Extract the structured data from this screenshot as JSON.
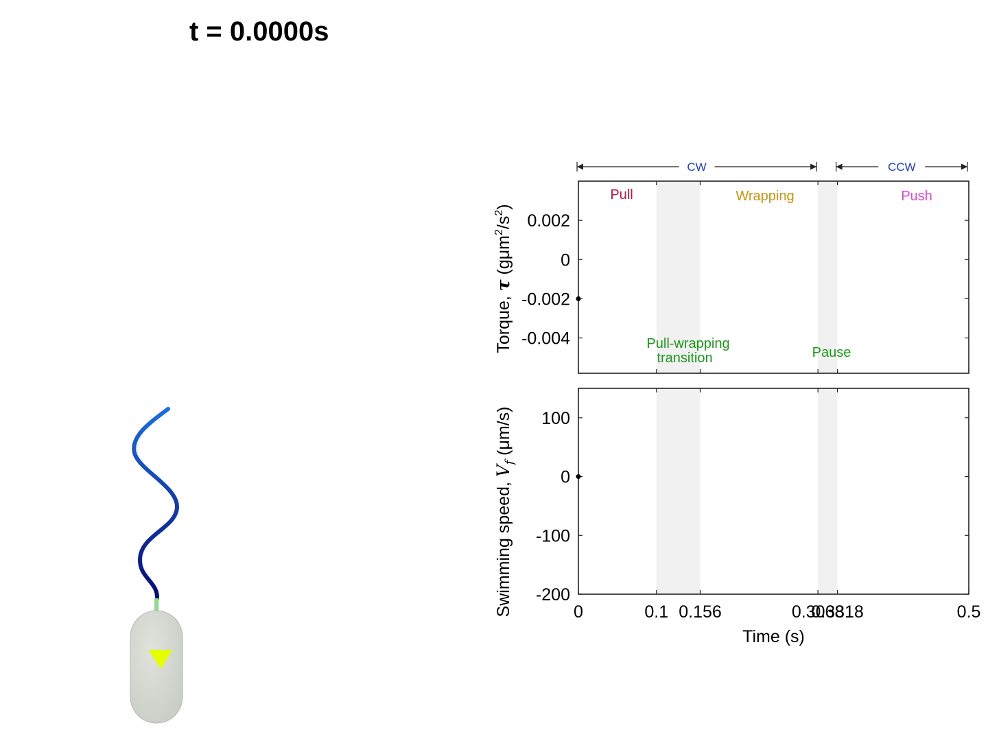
{
  "title": "t = 0.0000s",
  "colors": {
    "cw": "#1a3fe0",
    "ccw": "#1a3fe0",
    "pull": "#cc1144",
    "wrapping": "#c8960a",
    "push": "#e83ee0",
    "transition": "#1a9a1a",
    "band": "#f1f1f1",
    "flagellum_tip": "#1a6ee0",
    "flagellum_base": "#0a0a7a",
    "hook": "#8fdc8f",
    "body": "#c6cbc4",
    "arrow_marker": "#e6ff00"
  },
  "direction_labels": {
    "cw": "CW",
    "ccw": "CCW"
  },
  "phase_labels": {
    "pull": "Pull",
    "wrapping": "Wrapping",
    "push": "Push",
    "pull_wrapping_line1": "Pull-wrapping",
    "pull_wrapping_line2": "transition",
    "pause": "Pause"
  },
  "chart_data": [
    {
      "type": "line",
      "ylabel": "Torque, τ (gμm²/s²)",
      "ylabel_main": "Torque, ",
      "ylabel_symbol": "τ",
      "ylabel_unit_pre": " (gμm",
      "ylabel_sup1": "2",
      "ylabel_unit_mid": "/s",
      "ylabel_sup2": "2",
      "ylabel_unit_post": ")",
      "xlim": [
        0,
        0.5
      ],
      "ylim": [
        -0.0058,
        0.004
      ],
      "yticks": [
        0.002,
        0,
        -0.002,
        -0.004
      ],
      "ytick_labels": [
        "0.002",
        "0",
        "-0.002",
        "-0.004"
      ],
      "shaded_bands": [
        [
          0.1,
          0.156
        ],
        [
          0.3068,
          0.3318
        ]
      ],
      "x": [
        0
      ],
      "values": [
        -0.002
      ]
    },
    {
      "type": "line",
      "ylabel": "Swimming speed, Vf (μm/s)",
      "ylabel_main": "Swimming speed, ",
      "ylabel_symbol": "V",
      "ylabel_sub": "f",
      "ylabel_unit_post": " (μm/s)",
      "xlabel": "Time (s)",
      "xlim": [
        0,
        0.5
      ],
      "ylim": [
        -200,
        150
      ],
      "yticks": [
        100,
        0,
        -100,
        -200
      ],
      "ytick_labels": [
        "100",
        "0",
        "-100",
        "-200"
      ],
      "xticks": [
        0,
        0.1,
        0.156,
        0.3068,
        0.3318,
        0.5
      ],
      "xtick_labels": [
        "0",
        "0.1",
        "0.156",
        "0.3068",
        "0.3318",
        "0.5"
      ],
      "shaded_bands": [
        [
          0.1,
          0.156
        ],
        [
          0.3068,
          0.3318
        ]
      ],
      "x": [
        0
      ],
      "values": [
        0
      ]
    }
  ]
}
